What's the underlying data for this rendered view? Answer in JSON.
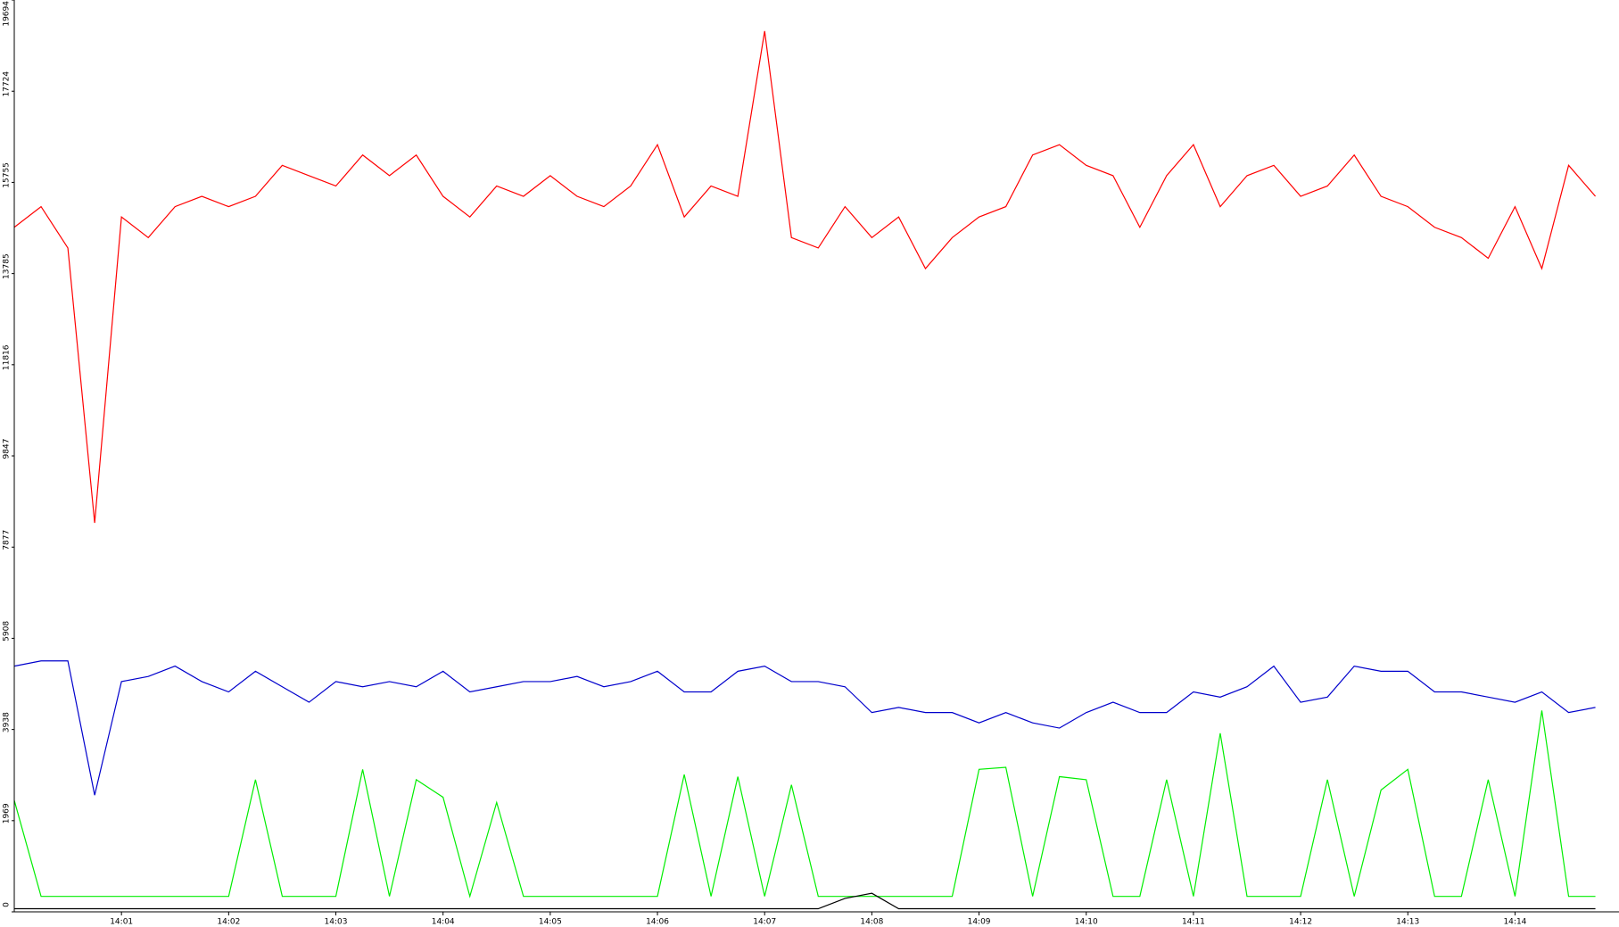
{
  "chart_data": {
    "type": "line",
    "x": [
      840,
      840.25,
      840.5,
      840.75,
      841,
      841.25,
      841.5,
      841.75,
      842,
      842.25,
      842.5,
      842.75,
      843,
      843.25,
      843.5,
      843.75,
      844,
      844.25,
      844.5,
      844.75,
      845,
      845.25,
      845.5,
      845.75,
      846,
      846.25,
      846.5,
      846.75,
      847,
      847.25,
      847.5,
      847.75,
      848,
      848.25,
      848.5,
      848.75,
      849,
      849.25,
      849.5,
      849.75,
      850,
      850.25,
      850.5,
      850.75,
      851,
      851.25,
      851.5,
      851.75,
      852,
      852.25,
      852.5,
      852.75,
      853,
      853.25,
      853.5,
      853.75,
      854,
      854.25,
      854.5,
      854.75
    ],
    "series": [
      {
        "name": "red",
        "color": "#ff0000",
        "values": [
          14785,
          15231,
          14339,
          8400,
          15008,
          14562,
          15231,
          15454,
          15231,
          15454,
          16123,
          15900,
          15677,
          16346,
          15900,
          16346,
          15454,
          15008,
          15677,
          15454,
          15900,
          15454,
          15231,
          15677,
          16569,
          15008,
          15677,
          15454,
          19022,
          14562,
          14339,
          15231,
          14562,
          15008,
          13893,
          14562,
          15008,
          15231,
          16346,
          16569,
          16123,
          15900,
          14785,
          15900,
          16569,
          15231,
          15900,
          16123,
          15454,
          15677,
          16346,
          15454,
          15231,
          14785,
          14562,
          14116,
          15231,
          13893,
          16123,
          15454
        ]
      },
      {
        "name": "blue",
        "color": "#0000cc",
        "values": [
          5307,
          5419,
          5419,
          2520,
          4973,
          5084,
          5307,
          4973,
          4750,
          5196,
          4861,
          4527,
          4973,
          4861,
          4973,
          4861,
          5196,
          4750,
          4861,
          4973,
          4973,
          5084,
          4861,
          4973,
          5196,
          4750,
          4750,
          5196,
          5307,
          4973,
          4973,
          4861,
          4304,
          4415,
          4304,
          4304,
          4081,
          4304,
          4081,
          3969,
          4304,
          4527,
          4304,
          4304,
          4750,
          4638,
          4861,
          5307,
          4527,
          4638,
          5307,
          5196,
          5196,
          4750,
          4750,
          4638,
          4527,
          4750,
          4304,
          4415
        ]
      },
      {
        "name": "green",
        "color": "#00ee00",
        "values": [
          2408,
          334,
          334,
          334,
          334,
          334,
          334,
          334,
          334,
          2854,
          334,
          334,
          334,
          3077,
          334,
          2854,
          2475,
          334,
          2363,
          334,
          334,
          334,
          334,
          334,
          334,
          2965,
          334,
          2920,
          334,
          2743,
          334,
          334,
          334,
          334,
          334,
          334,
          3077,
          3121,
          334,
          2920,
          2854,
          334,
          334,
          2854,
          334,
          3858,
          334,
          334,
          334,
          2854,
          334,
          2631,
          3077,
          334,
          334,
          2854,
          334,
          4349,
          334,
          334
        ]
      },
      {
        "name": "black",
        "color": "#000000",
        "values": [
          67,
          67,
          67,
          67,
          67,
          67,
          67,
          67,
          67,
          67,
          67,
          67,
          67,
          67,
          67,
          67,
          67,
          67,
          67,
          67,
          67,
          67,
          67,
          67,
          67,
          67,
          67,
          67,
          67,
          67,
          67,
          290,
          401,
          67,
          67,
          67,
          67,
          67,
          67,
          67,
          67,
          67,
          67,
          67,
          67,
          67,
          67,
          67,
          67,
          67,
          67,
          67,
          67,
          67,
          67,
          67,
          67,
          67,
          67,
          67
        ]
      }
    ],
    "xlim": [
      840,
      854.97
    ],
    "xticks": [
      {
        "value": 841,
        "label": "14:01"
      },
      {
        "value": 842,
        "label": "14:02"
      },
      {
        "value": 843,
        "label": "14:03"
      },
      {
        "value": 844,
        "label": "14:04"
      },
      {
        "value": 845,
        "label": "14:05"
      },
      {
        "value": 846,
        "label": "14:06"
      },
      {
        "value": 847,
        "label": "14:07"
      },
      {
        "value": 848,
        "label": "14:08"
      },
      {
        "value": 849,
        "label": "14:09"
      },
      {
        "value": 850,
        "label": "14:10"
      },
      {
        "value": 851,
        "label": "14:11"
      },
      {
        "value": 852,
        "label": "14:12"
      },
      {
        "value": 853,
        "label": "14:13"
      },
      {
        "value": 854,
        "label": "14:14"
      }
    ],
    "ylim": [
      0,
      19694
    ],
    "yticks": [
      0,
      1969,
      3938,
      5908,
      7877,
      9847,
      11816,
      13785,
      15755,
      17724,
      19694
    ]
  }
}
